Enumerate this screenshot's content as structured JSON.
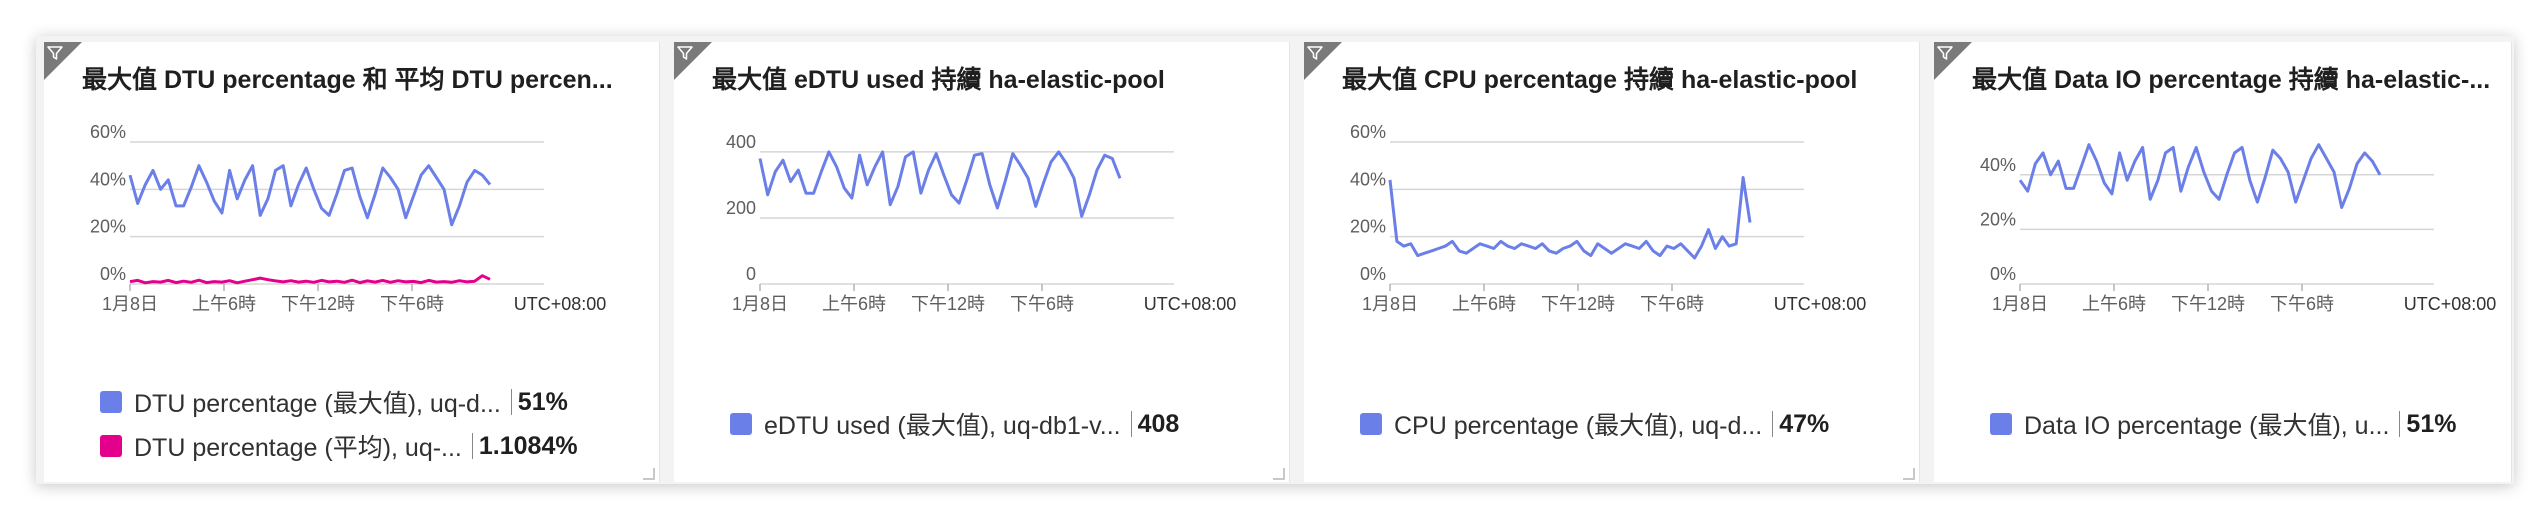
{
  "colors": {
    "series_blue": "#6b7fe8",
    "series_pink": "#e3008c",
    "grid": "#d6d6d6",
    "axis_text": "#605e5c",
    "corner": "#7a7a7a"
  },
  "icons": {
    "corner": "filter-icon"
  },
  "tiles": [
    {
      "title": "最大值 DTU percentage 和 平均 DTU percen...",
      "legend": [
        {
          "label": "DTU percentage (最大值), uq-d...",
          "value": "51%",
          "color": "#6b7fe8"
        },
        {
          "label": "DTU percentage (平均), uq-...",
          "value": "1.1084%",
          "color": "#e3008c"
        }
      ]
    },
    {
      "title": "最大值 eDTU used 持續 ha-elastic-pool",
      "legend": [
        {
          "label": "eDTU used (最大值), uq-db1-v...",
          "value": "408",
          "color": "#6b7fe8"
        }
      ]
    },
    {
      "title": "最大值 CPU percentage 持續 ha-elastic-pool",
      "legend": [
        {
          "label": "CPU percentage (最大值), uq-d...",
          "value": "47%",
          "color": "#6b7fe8"
        }
      ]
    },
    {
      "title": "最大值 Data IO percentage 持續 ha-elastic-...",
      "legend": [
        {
          "label": "Data IO percentage (最大值), u...",
          "value": "51%",
          "color": "#6b7fe8"
        }
      ]
    }
  ],
  "chart_data": [
    {
      "type": "line",
      "x_ticks": [
        "1月8日",
        "上午6時",
        "下午12時",
        "下午6時",
        "UTC+08:00"
      ],
      "y_ticks": [
        "0%",
        "20%",
        "40%",
        "60%"
      ],
      "ylim": [
        0,
        60
      ],
      "grid": true,
      "series": [
        {
          "name": "DTU percentage (最大值), uq-d...",
          "color": "#6b7fe8",
          "values": [
            46,
            34,
            42,
            48,
            40,
            44,
            33,
            33,
            41,
            50,
            43,
            35,
            30,
            48,
            36,
            44,
            50,
            29,
            36,
            48,
            50,
            33,
            42,
            49,
            40,
            32,
            29,
            38,
            48,
            49,
            37,
            28,
            38,
            49,
            45,
            40,
            28,
            37,
            46,
            50,
            45,
            40,
            25,
            33,
            43,
            48,
            46,
            42
          ]
        },
        {
          "name": "DTU percentage (平均), uq-...",
          "color": "#e3008c",
          "values": [
            1,
            1.5,
            0.5,
            1,
            0.8,
            1.5,
            0.6,
            1.2,
            0.7,
            1.6,
            0.6,
            1,
            0.8,
            1.4,
            0.5,
            1.2,
            1.8,
            2.5,
            1.8,
            1.3,
            0.9,
            1.4,
            0.8,
            1.2,
            0.7,
            1.5,
            0.9,
            1.2,
            0.7,
            1.6,
            0.6,
            1.3,
            0.8,
            1.5,
            0.7,
            1.4,
            0.9,
            1.1,
            0.6,
            1.5,
            0.8,
            1,
            0.7,
            1.4,
            0.9,
            1.2,
            3.5,
            2
          ]
        }
      ]
    },
    {
      "type": "line",
      "x_ticks": [
        "1月8日",
        "上午6時",
        "下午12時",
        "下午6時",
        "UTC+08:00"
      ],
      "y_ticks": [
        "0",
        "200",
        "400"
      ],
      "ylim": [
        0,
        430
      ],
      "grid": true,
      "series": [
        {
          "name": "eDTU used (最大值), uq-db1-v...",
          "color": "#6b7fe8",
          "values": [
            380,
            270,
            340,
            375,
            310,
            345,
            275,
            275,
            340,
            400,
            355,
            290,
            260,
            390,
            300,
            355,
            400,
            240,
            295,
            385,
            400,
            275,
            345,
            395,
            330,
            270,
            245,
            315,
            390,
            395,
            300,
            230,
            310,
            395,
            360,
            320,
            235,
            305,
            370,
            400,
            365,
            320,
            205,
            270,
            345,
            390,
            380,
            320
          ]
        }
      ]
    },
    {
      "type": "line",
      "x_ticks": [
        "1月8日",
        "上午6時",
        "下午12時",
        "下午6時",
        "UTC+08:00"
      ],
      "y_ticks": [
        "0%",
        "20%",
        "40%",
        "60%"
      ],
      "ylim": [
        0,
        60
      ],
      "grid": true,
      "series": [
        {
          "name": "CPU percentage (最大值), uq-d...",
          "color": "#6b7fe8",
          "values": [
            44,
            18,
            16,
            17,
            12,
            13,
            14,
            15,
            16,
            18,
            14,
            13,
            15,
            17,
            16,
            15,
            18,
            16,
            15,
            17,
            16,
            15,
            17,
            14,
            13,
            15,
            16,
            18,
            14,
            12,
            17,
            15,
            13,
            15,
            17,
            16,
            15,
            18,
            14,
            12,
            16,
            15,
            17,
            14,
            11,
            16,
            23,
            15,
            20,
            16,
            17,
            45,
            26
          ]
        }
      ]
    },
    {
      "type": "line",
      "x_ticks": [
        "1月8日",
        "上午6時",
        "下午12時",
        "下午6時",
        "UTC+08:00"
      ],
      "y_ticks": [
        "0%",
        "20%",
        "40%"
      ],
      "ylim": [
        0,
        52
      ],
      "grid": true,
      "series": [
        {
          "name": "Data IO percentage (最大值), u...",
          "color": "#6b7fe8",
          "values": [
            38,
            34,
            44,
            48,
            40,
            45,
            35,
            35,
            43,
            51,
            45,
            37,
            33,
            48,
            38,
            45,
            50,
            31,
            38,
            48,
            50,
            34,
            43,
            50,
            41,
            34,
            31,
            40,
            48,
            50,
            38,
            30,
            39,
            49,
            46,
            41,
            30,
            38,
            46,
            51,
            46,
            41,
            28,
            35,
            44,
            48,
            45,
            40
          ]
        }
      ]
    }
  ]
}
